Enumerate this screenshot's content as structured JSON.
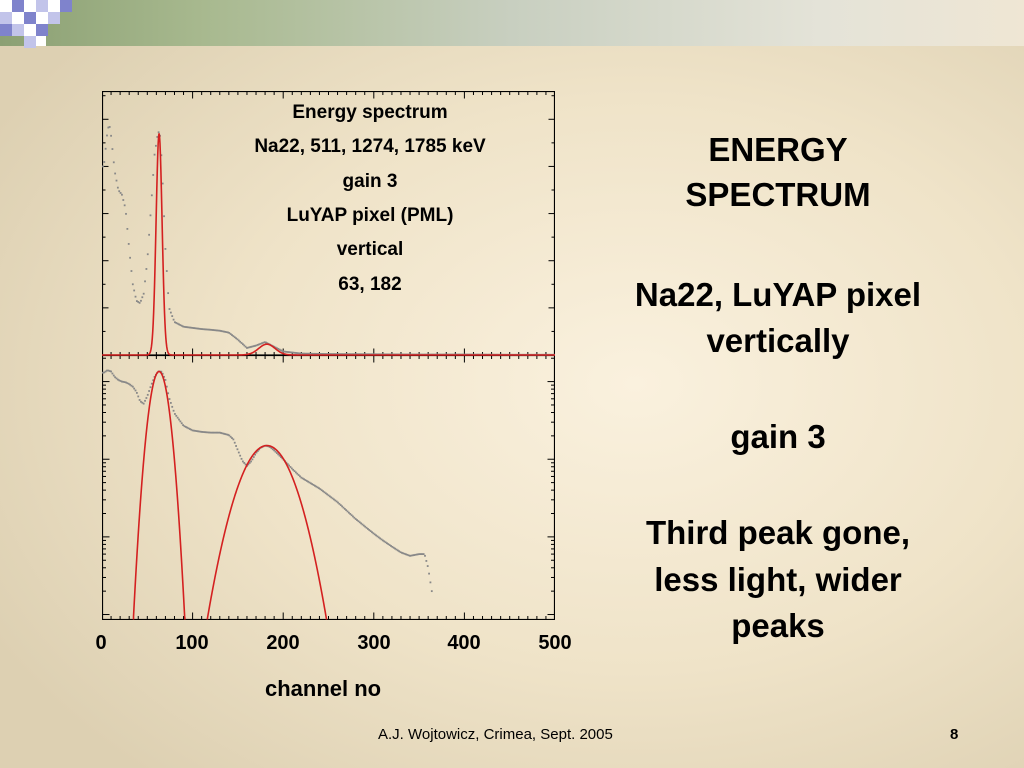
{
  "slide": {
    "title_lines": [
      "ENERGY",
      "SPECTRUM"
    ],
    "subtitle_lines": [
      "Na22, LuYAP pixel",
      "vertically"
    ],
    "gain_text": "gain 3",
    "note_lines": [
      "Third peak gone,",
      "less light, wider",
      "peaks"
    ],
    "footer": "A.J. Wojtowicz, Crimea, Sept. 2005",
    "page_number": "8"
  },
  "colors": {
    "fit_curve": "#d42020",
    "data_points": "#888888",
    "accent_squares": "#7f83cc"
  },
  "chart_data": [
    {
      "type": "scatter",
      "panel": "top",
      "scale": "linear",
      "annotations": [
        "Energy spectrum",
        "Na22, 511, 1274, 1785 keV",
        "gain 3",
        "LuYAP pixel (PML)",
        "vertical",
        "63, 182"
      ],
      "data_series": {
        "name": "",
        "x": [
          2,
          6,
          8,
          10,
          14,
          18,
          22,
          26,
          30,
          34,
          38,
          42,
          46,
          50,
          54,
          58,
          62,
          64,
          66,
          70,
          74,
          80,
          90,
          100,
          110,
          120,
          130,
          140,
          150,
          160,
          170,
          180,
          190,
          200,
          220,
          250,
          300,
          350,
          400,
          450,
          500
        ],
        "y": [
          0.8,
          0.95,
          0.98,
          0.93,
          0.78,
          0.7,
          0.68,
          0.62,
          0.45,
          0.3,
          0.23,
          0.22,
          0.26,
          0.4,
          0.62,
          0.85,
          0.95,
          0.93,
          0.82,
          0.45,
          0.2,
          0.14,
          0.12,
          0.115,
          0.11,
          0.107,
          0.103,
          0.095,
          0.065,
          0.03,
          0.04,
          0.055,
          0.035,
          0.015,
          0.006,
          0.004,
          0.003,
          0.002,
          0.002,
          0.001,
          0.001
        ]
      },
      "fit_series": {
        "name": "",
        "peaks": [
          {
            "center": 63,
            "height": 0.94,
            "sigma": 3.3
          },
          {
            "center": 182,
            "height": 0.046,
            "sigma": 9
          }
        ]
      },
      "xlim": [
        0,
        500
      ],
      "ylim": [
        0,
        1.12
      ]
    },
    {
      "type": "scatter",
      "panel": "bottom",
      "scale": "log",
      "data_series": {
        "name": "",
        "x": [
          2,
          6,
          10,
          14,
          18,
          22,
          26,
          30,
          34,
          38,
          42,
          46,
          50,
          54,
          58,
          62,
          66,
          70,
          74,
          80,
          90,
          100,
          110,
          120,
          130,
          140,
          145,
          150,
          155,
          160,
          165,
          170,
          175,
          180,
          185,
          190,
          200,
          210,
          220,
          240,
          260,
          280,
          300,
          310,
          320,
          330,
          340,
          350,
          356,
          360,
          364
        ],
        "y": [
          13,
          14,
          13.5,
          11.5,
          10.5,
          10,
          9.8,
          9.3,
          8.6,
          7.4,
          5.6,
          5.2,
          6.5,
          8.8,
          11.5,
          13.5,
          13.4,
          10.5,
          6.2,
          3.9,
          2.7,
          2.35,
          2.25,
          2.2,
          2.2,
          2.05,
          1.8,
          1.3,
          0.95,
          0.82,
          0.95,
          1.2,
          1.4,
          1.5,
          1.45,
          1.3,
          1.0,
          0.75,
          0.58,
          0.42,
          0.28,
          0.17,
          0.11,
          0.09,
          0.075,
          0.063,
          0.057,
          0.06,
          0.06,
          0.04,
          0.02
        ]
      },
      "fit_series": {
        "name": "",
        "peaks": [
          {
            "center": 63,
            "height": 13.5,
            "sigma": 7.4
          },
          {
            "center": 182,
            "height": 1.5,
            "sigma": 20.5
          }
        ]
      },
      "xlim": [
        0,
        500
      ],
      "ylog_range": [
        0.0085,
        22
      ]
    }
  ],
  "x_axis": {
    "label": "channel no",
    "ticks": [
      "0",
      "100",
      "200",
      "300",
      "400",
      "500"
    ]
  }
}
